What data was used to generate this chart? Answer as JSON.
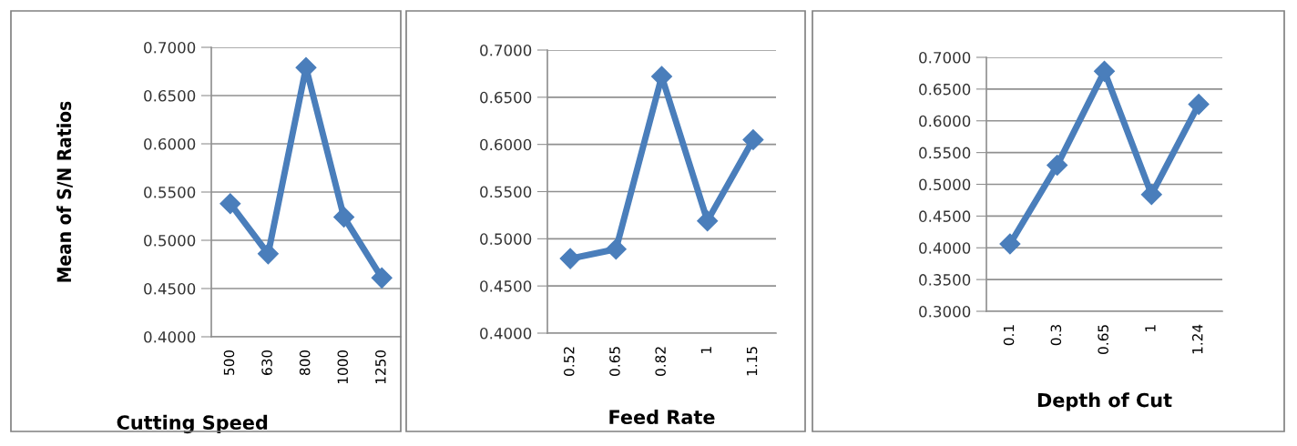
{
  "chart_data": [
    {
      "type": "line",
      "xlabel": "Cutting Speed",
      "ylabel": "Mean of S/N Ratios",
      "categories": [
        "500",
        "630",
        "800",
        "1000",
        "1250"
      ],
      "values": [
        0.538,
        0.486,
        0.679,
        0.524,
        0.461
      ],
      "color": "#4a7ebb",
      "marker": "diamond",
      "grid": "y",
      "ylim": [
        0.4,
        0.7
      ],
      "yticks": [
        {
          "value": 0.4,
          "label": "0.4000"
        },
        {
          "value": 0.45,
          "label": "0.4500"
        },
        {
          "value": 0.5,
          "label": "0.5000"
        },
        {
          "value": 0.55,
          "label": "0.5500"
        },
        {
          "value": 0.6,
          "label": "0.6000"
        },
        {
          "value": 0.65,
          "label": "0.6500"
        },
        {
          "value": 0.7,
          "label": "0.7000"
        }
      ]
    },
    {
      "type": "line",
      "xlabel": "Feed Rate",
      "categories": [
        "0.52",
        "0.65",
        "0.82",
        "1",
        "1.15"
      ],
      "values": [
        0.479,
        0.489,
        0.672,
        0.519,
        0.605
      ],
      "color": "#4a7ebb",
      "marker": "diamond",
      "grid": "y",
      "ylim": [
        0.4,
        0.7
      ],
      "yticks": [
        {
          "value": 0.4,
          "label": "0.4000"
        },
        {
          "value": 0.45,
          "label": "0.4500"
        },
        {
          "value": 0.5,
          "label": "0.5000"
        },
        {
          "value": 0.55,
          "label": "0.5500"
        },
        {
          "value": 0.6,
          "label": "0.6000"
        },
        {
          "value": 0.65,
          "label": "0.6500"
        },
        {
          "value": 0.7,
          "label": "0.7000"
        }
      ]
    },
    {
      "type": "line",
      "xlabel": "Depth of Cut",
      "categories": [
        "0.1",
        "0.3",
        "0.65",
        "1",
        "1.24"
      ],
      "values": [
        0.406,
        0.53,
        0.678,
        0.484,
        0.626
      ],
      "color": "#4a7ebb",
      "marker": "diamond",
      "grid": "y",
      "ylim": [
        0.3,
        0.7
      ],
      "yticks": [
        {
          "value": 0.3,
          "label": "0.3000"
        },
        {
          "value": 0.35,
          "label": "0.3500"
        },
        {
          "value": 0.4,
          "label": "0.4000"
        },
        {
          "value": 0.45,
          "label": "0.4500"
        },
        {
          "value": 0.5,
          "label": "0.5000"
        },
        {
          "value": 0.55,
          "label": "0.5500"
        },
        {
          "value": 0.6,
          "label": "0.6000"
        },
        {
          "value": 0.65,
          "label": "0.6500"
        },
        {
          "value": 0.7,
          "label": "0.7000"
        }
      ]
    }
  ]
}
